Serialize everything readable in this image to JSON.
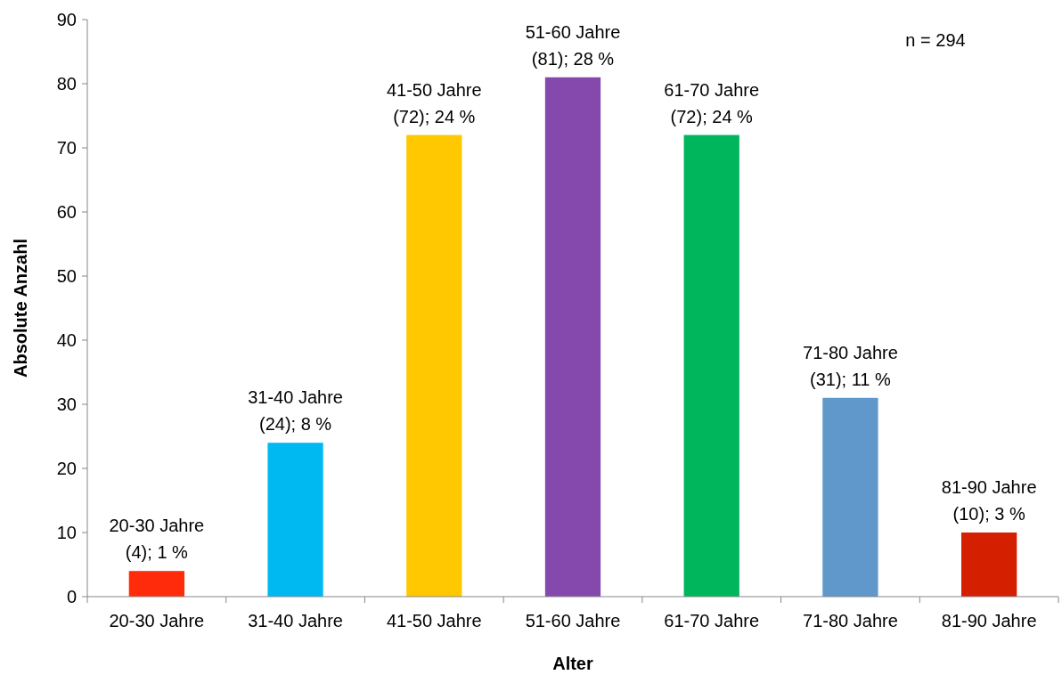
{
  "chart_data": {
    "type": "bar",
    "xlabel": "Alter",
    "ylabel": "Absolute Anzahl",
    "categories": [
      "20-30 Jahre",
      "31-40 Jahre",
      "41-50 Jahre",
      "51-60 Jahre",
      "61-70 Jahre",
      "71-80 Jahre",
      "81-90 Jahre"
    ],
    "values": [
      4,
      24,
      72,
      81,
      72,
      31,
      10
    ],
    "colors": [
      "#ff2b0a",
      "#00b9f1",
      "#ffc800",
      "#8549ad",
      "#00b65c",
      "#6198cb",
      "#d41f00"
    ],
    "value_labels": [
      "20-30 Jahre\n(4); 1 %",
      "31-40 Jahre\n(24); 8 %",
      "41-50 Jahre\n(72); 24 %",
      "51-60 Jahre\n(81); 28 %",
      "61-70 Jahre\n(72); 24 %",
      "71-80 Jahre\n(31); 11 %",
      "81-90 Jahre\n(10); 3 %"
    ],
    "ylim": [
      0,
      90
    ],
    "yticks": [
      0,
      10,
      20,
      30,
      40,
      50,
      60,
      70,
      80,
      90
    ],
    "grid": false,
    "annotations": [
      "n = 294"
    ]
  }
}
